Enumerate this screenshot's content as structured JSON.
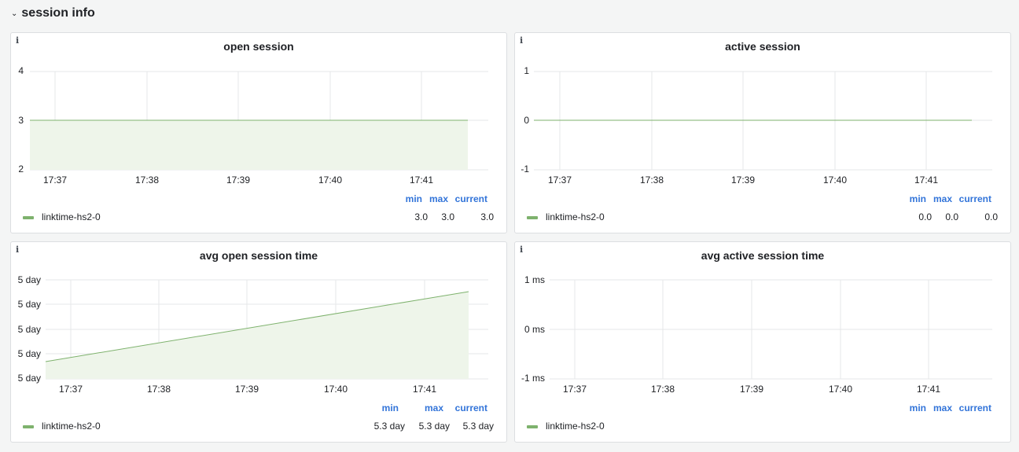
{
  "row": {
    "collapse_icon": "chevron-down-icon",
    "title": "session info"
  },
  "colors": {
    "series": "#7eb26d",
    "fill": "#eef5ea",
    "link": "#3274d9",
    "grid": "#e6e7e8"
  },
  "panels": {
    "open_session": {
      "title": "open session",
      "info_icon": "i",
      "yticks": [
        "4",
        "3",
        "2"
      ],
      "xticks": [
        "17:37",
        "17:38",
        "17:39",
        "17:40",
        "17:41"
      ],
      "legend": {
        "headers": [
          "min",
          "max",
          "current"
        ],
        "series": "linktime-hs2-0",
        "min": "3.0",
        "max": "3.0",
        "current": "3.0"
      }
    },
    "active_session": {
      "title": "active session",
      "info_icon": "i",
      "yticks": [
        "1",
        "0",
        "-1"
      ],
      "xticks": [
        "17:37",
        "17:38",
        "17:39",
        "17:40",
        "17:41"
      ],
      "legend": {
        "headers": [
          "min",
          "max",
          "current"
        ],
        "series": "linktime-hs2-0",
        "min": "0.0",
        "max": "0.0",
        "current": "0.0"
      }
    },
    "avg_open_session_time": {
      "title": "avg open session time",
      "info_icon": "i",
      "yticks": [
        "5 day",
        "5 day",
        "5 day",
        "5 day",
        "5 day"
      ],
      "xticks": [
        "17:37",
        "17:38",
        "17:39",
        "17:40",
        "17:41"
      ],
      "legend": {
        "headers": [
          "min",
          "max",
          "current"
        ],
        "series": "linktime-hs2-0",
        "min": "5.3 day",
        "max": "5.3 day",
        "current": "5.3 day"
      }
    },
    "avg_active_session_time": {
      "title": "avg active session time",
      "info_icon": "i",
      "yticks": [
        "1 ms",
        "0 ms",
        "-1 ms"
      ],
      "xticks": [
        "17:37",
        "17:38",
        "17:39",
        "17:40",
        "17:41"
      ],
      "legend": {
        "headers": [
          "min",
          "max",
          "current"
        ],
        "series": "linktime-hs2-0"
      }
    }
  }
}
